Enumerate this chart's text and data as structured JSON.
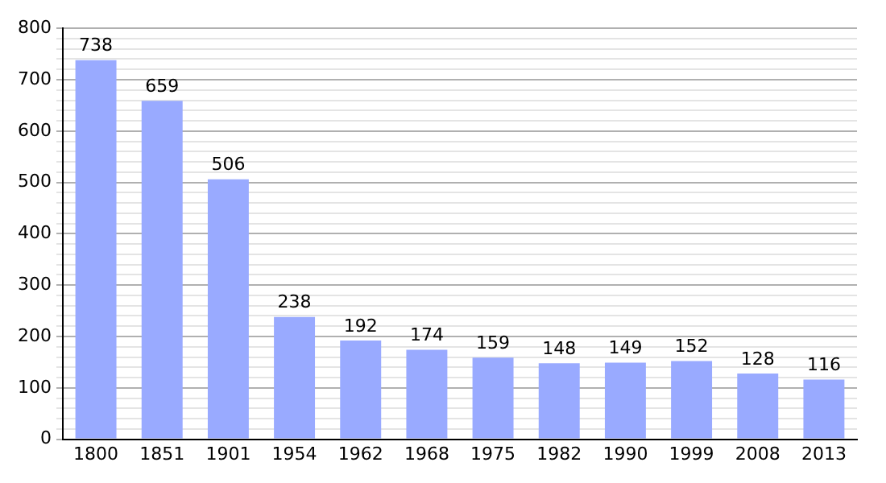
{
  "chart_data": {
    "type": "bar",
    "categories": [
      "1800",
      "1851",
      "1901",
      "1954",
      "1962",
      "1968",
      "1975",
      "1982",
      "1990",
      "1999",
      "2008",
      "2013"
    ],
    "values": [
      738,
      659,
      506,
      238,
      192,
      174,
      159,
      148,
      149,
      152,
      128,
      116
    ],
    "color": "#99aaff",
    "ylim": [
      0,
      800
    ],
    "yticks": [
      0,
      {
        "value": 20,
        "label": null
      },
      {
        "value": 40,
        "label": null
      },
      {
        "value": 60,
        "label": null
      },
      {
        "value": 80,
        "label": null
      },
      100,
      {
        "value": 120,
        "label": null
      },
      {
        "value": 140,
        "label": null
      },
      {
        "value": 160,
        "label": null
      },
      {
        "value": 180,
        "label": null
      },
      200,
      {
        "value": 220,
        "label": null
      },
      {
        "value": 240,
        "label": null
      },
      {
        "value": 260,
        "label": null
      },
      {
        "value": 280,
        "label": null
      },
      300,
      {
        "value": 320,
        "label": null
      },
      {
        "value": 340,
        "label": null
      },
      {
        "value": 360,
        "label": null
      },
      {
        "value": 380,
        "label": null
      },
      400,
      {
        "value": 420,
        "label": null
      },
      {
        "value": 440,
        "label": null
      },
      {
        "value": 460,
        "label": null
      },
      {
        "value": 480,
        "label": null
      },
      500,
      {
        "value": 520,
        "label": null
      },
      {
        "value": 540,
        "label": null
      },
      {
        "value": 560,
        "label": null
      },
      {
        "value": 580,
        "label": null
      },
      600,
      {
        "value": 620,
        "label": null
      },
      {
        "value": 640,
        "label": null
      },
      {
        "value": 660,
        "label": null
      },
      {
        "value": 680,
        "label": null
      },
      700,
      {
        "value": 720,
        "label": null
      },
      {
        "value": 740,
        "label": null
      },
      {
        "value": 760,
        "label": null
      },
      {
        "value": 780,
        "label": null
      },
      800
    ],
    "grid": "y",
    "data_labels": true
  }
}
